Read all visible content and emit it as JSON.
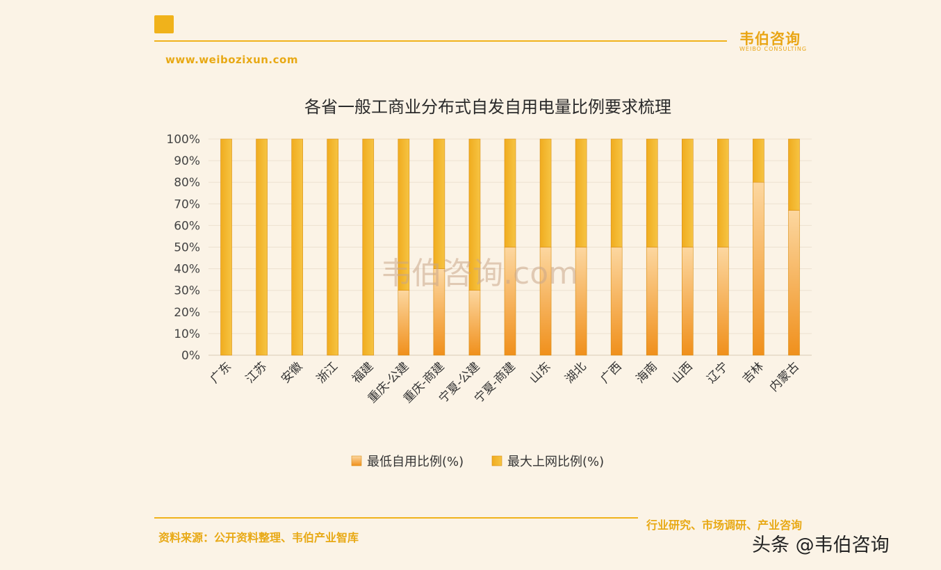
{
  "header": {
    "url": "www.weibozixun.com",
    "brand": "韦伯咨询",
    "brand_sub": "WEIBO CONSULTING"
  },
  "watermark": "韦伯咨询.com",
  "footer": {
    "source": "资料来源：公开资料整理、韦伯产业智库",
    "slogan": "行业研究、市场调研、产业咨询",
    "platform": "头条 @韦伯咨询"
  },
  "colors": {
    "background": "#fbf3e6",
    "accent": "#f0b21b",
    "min_series": "#f29a2c",
    "max_series": "#f5b82a"
  },
  "chart_data": {
    "type": "bar",
    "stacked": true,
    "title": "各省一般工商业分布式自发自用电量比例要求梳理",
    "categories": [
      "广东",
      "江苏",
      "安徽",
      "浙江",
      "福建",
      "重庆-公建",
      "重庆-商建",
      "宁夏-公建",
      "宁夏-商建",
      "山东",
      "湖北",
      "广西",
      "海南",
      "山西",
      "辽宁",
      "吉林",
      "内蒙古"
    ],
    "series": [
      {
        "name": "最低自用比例(%)",
        "values": [
          0,
          0,
          0,
          0,
          0,
          30,
          40,
          30,
          50,
          50,
          50,
          50,
          50,
          50,
          50,
          80,
          67
        ]
      },
      {
        "name": "最大上网比例(%)",
        "values": [
          100,
          100,
          100,
          100,
          100,
          70,
          60,
          70,
          50,
          50,
          50,
          50,
          50,
          50,
          50,
          20,
          33
        ]
      }
    ],
    "y_ticks": [
      "0%",
      "10%",
      "20%",
      "30%",
      "40%",
      "50%",
      "60%",
      "70%",
      "80%",
      "90%",
      "100%"
    ],
    "ylim": [
      0,
      100
    ],
    "grid": true,
    "legend": "bottom"
  }
}
